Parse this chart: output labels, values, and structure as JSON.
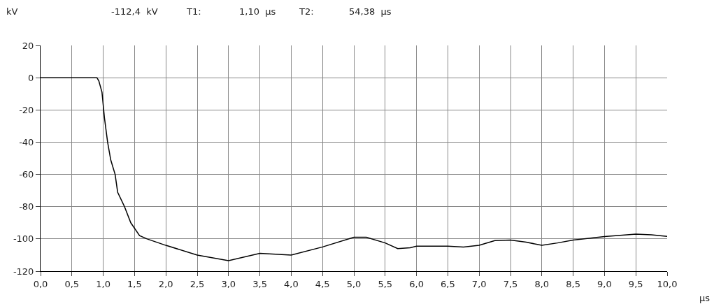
{
  "chart_data": {
    "type": "line",
    "xlabel": "µs",
    "ylabel": "kV",
    "annotations": [
      "-112,4  kV",
      "T1:",
      "1,10  µs",
      "T2:",
      "54,38  µs"
    ],
    "series": [
      {
        "color": "#000000",
        "x": [
          0,
          0.9,
          0.93,
          0.98,
          1.02,
          1.07,
          1.12,
          1.19,
          1.23,
          1.34,
          1.44,
          1.58,
          1.7,
          2.0,
          2.5,
          3.0,
          3.5,
          4.0,
          4.5,
          5.0,
          5.2,
          5.5,
          5.7,
          5.9,
          6.0,
          6.5,
          6.75,
          7.0,
          7.25,
          7.5,
          7.75,
          8.0,
          8.25,
          8.5,
          9.0,
          9.25,
          9.5,
          9.75,
          10.0
        ],
        "values": [
          0,
          0,
          -2,
          -9,
          -25,
          -40,
          -51,
          -60,
          -71,
          -80,
          -90,
          -98,
          -100,
          -104,
          -110,
          -113.5,
          -109,
          -110,
          -105,
          -99,
          -99,
          -102.5,
          -106,
          -105.5,
          -104.5,
          -104.5,
          -105,
          -104,
          -101,
          -100.7,
          -102,
          -104,
          -102.5,
          -100.7,
          -98.5,
          -97.8,
          -97,
          -97.5,
          -98.4
        ]
      }
    ],
    "xlim": [
      0,
      10
    ],
    "xticks": [
      {
        "value": 0,
        "label": "0,0"
      },
      {
        "value": 0.5,
        "label": "0,5"
      },
      {
        "value": 1,
        "label": "1,0"
      },
      {
        "value": 1.5,
        "label": "1,5"
      },
      {
        "value": 2,
        "label": "2,0"
      },
      {
        "value": 2.5,
        "label": "2,5"
      },
      {
        "value": 3,
        "label": "3,0"
      },
      {
        "value": 3.5,
        "label": "3,5"
      },
      {
        "value": 4,
        "label": "4,0"
      },
      {
        "value": 4.5,
        "label": "4,5"
      },
      {
        "value": 5,
        "label": "5,0"
      },
      {
        "value": 5.5,
        "label": "5,5"
      },
      {
        "value": 6,
        "label": "6,0"
      },
      {
        "value": 6.5,
        "label": "6,5"
      },
      {
        "value": 7,
        "label": "7,0"
      },
      {
        "value": 7.5,
        "label": "7,5"
      },
      {
        "value": 8,
        "label": "8,0"
      },
      {
        "value": 8.5,
        "label": "8,5"
      },
      {
        "value": 9,
        "label": "9,0"
      },
      {
        "value": 9.5,
        "label": "9,5"
      },
      {
        "value": 10,
        "label": "10,0"
      }
    ],
    "ylim": [
      -120,
      20
    ],
    "yticks": [
      20,
      0,
      -20,
      -40,
      -60,
      -80,
      -100,
      -120
    ],
    "grid": true,
    "marker": "none",
    "line_style": "solid"
  }
}
